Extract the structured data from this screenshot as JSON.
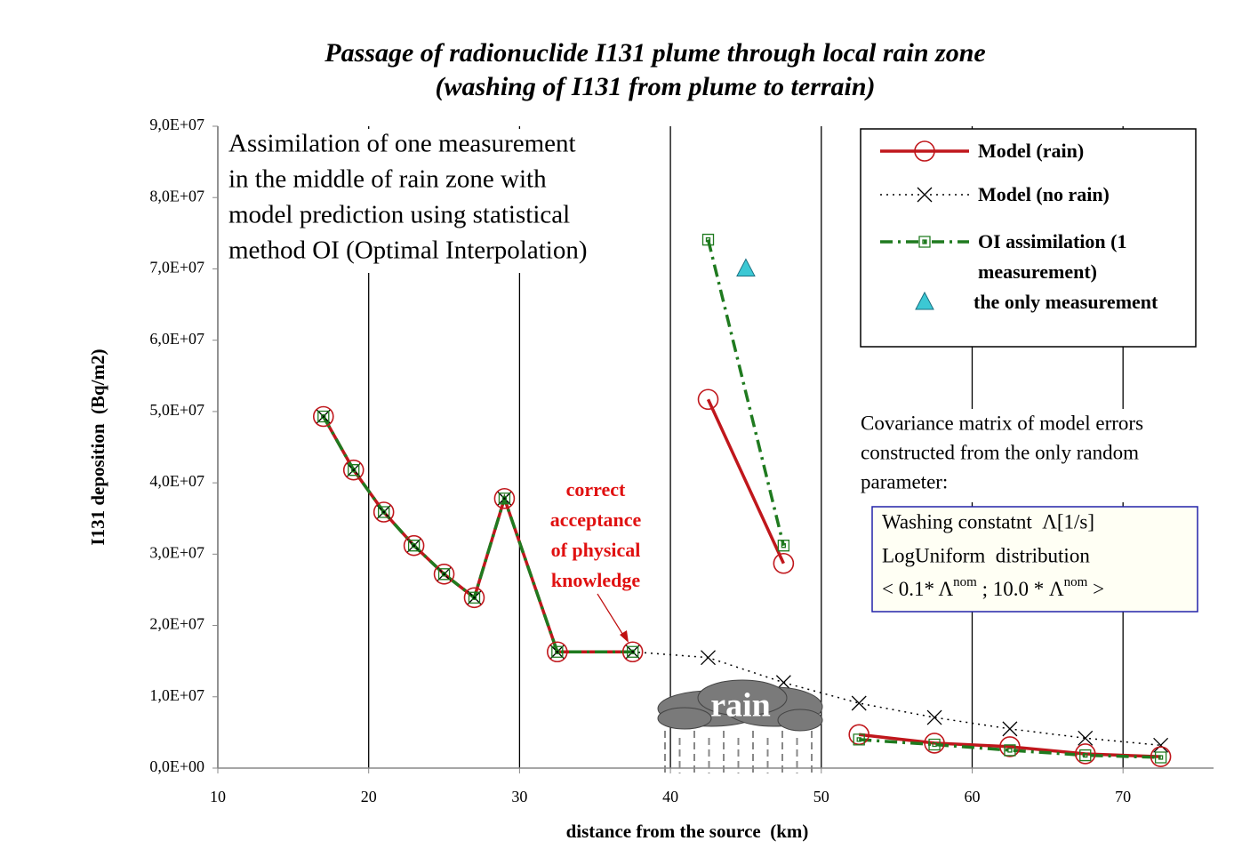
{
  "chart_data": {
    "type": "line",
    "title": [
      "Passage of radionuclide I131 plume through local rain zone",
      "(washing of I131 from plume to terrain)"
    ],
    "xlabel": "distance from the source  (km)",
    "ylabel": "I131 deposition  (Bq/m2)",
    "xlim": [
      10,
      76
    ],
    "ylim": [
      0,
      90000000
    ],
    "xticks": [
      10,
      20,
      30,
      40,
      50,
      60,
      70
    ],
    "yticks": [
      {
        "value": 0,
        "label": "0,0E+00"
      },
      {
        "value": 10000000,
        "label": "1,0E+07"
      },
      {
        "value": 20000000,
        "label": "2,0E+07"
      },
      {
        "value": 30000000,
        "label": "3,0E+07"
      },
      {
        "value": 40000000,
        "label": "4,0E+07"
      },
      {
        "value": 50000000,
        "label": "5,0E+07"
      },
      {
        "value": 60000000,
        "label": "6,0E+07"
      },
      {
        "value": 70000000,
        "label": "7,0E+07"
      },
      {
        "value": 80000000,
        "label": "8,0E+07"
      },
      {
        "value": 90000000,
        "label": "9,0E+07"
      }
    ],
    "grid": "x",
    "series": [
      {
        "name": "Model (no rain)",
        "color": "#000000",
        "dash": "dotted",
        "marker": "cross",
        "x": [
          17,
          19,
          21,
          23,
          25,
          27,
          29,
          32.5,
          37.5,
          42.5,
          47.5,
          52.5,
          57.5,
          62.5,
          67.5,
          72.5
        ],
        "values": [
          49300000,
          41800000,
          35900000,
          31200000,
          27200000,
          23900000,
          37800000,
          16300000,
          16300000,
          15500000,
          12000000,
          9100000,
          7100000,
          5500000,
          4200000,
          3200000
        ]
      },
      {
        "name": "Model (rain)",
        "color": "#c0171c",
        "dash": "solid",
        "marker": "circle",
        "x": [
          17,
          19,
          21,
          23,
          25,
          27,
          29,
          32.5,
          37.5,
          40,
          42.5,
          47.5,
          50,
          52.5,
          57.5,
          62.5,
          67.5,
          72.5
        ],
        "values": [
          49300000,
          41800000,
          35900000,
          31200000,
          27200000,
          23900000,
          37800000,
          16300000,
          16300000,
          null,
          51700000,
          28700000,
          null,
          4700000,
          3500000,
          3000000,
          2000000,
          1600000
        ]
      },
      {
        "name": "OI assimilation (1 measurement)",
        "color": "#1f7a1f",
        "dash": "dashdot",
        "marker": "square",
        "x": [
          17,
          19,
          21,
          23,
          25,
          27,
          29,
          32.5,
          37.5,
          40,
          42.5,
          47.5,
          50,
          52.5,
          57.5,
          62.5,
          67.5,
          72.5
        ],
        "values": [
          49300000,
          41800000,
          35900000,
          31200000,
          27200000,
          23900000,
          37800000,
          16300000,
          16300000,
          null,
          74100000,
          31200000,
          null,
          4000000,
          3300000,
          2500000,
          1800000,
          1500000
        ]
      },
      {
        "name": "the only measurement",
        "color": "#3cc8d4",
        "dash": "none",
        "marker": "triangle",
        "x": [
          45
        ],
        "values": [
          70000000
        ]
      }
    ],
    "annotations": {
      "textbox": [
        "Assimilation of one measurement",
        "in the middle of rain zone with",
        "model prediction using statistical",
        "method OI (Optimal Interpolation)"
      ],
      "callout": [
        "correct",
        "acceptance",
        "of physical",
        "knowledge"
      ],
      "covariance": [
        "Covariance matrix of model errors",
        "constructed from the only random",
        "parameter:"
      ],
      "distribution": [
        "Washing constatnt  Λ[1/s]",
        "LogUniform  distribution",
        [
          "< 0.1* Λ",
          "nom",
          " ; 10.0 * Λ",
          "nom",
          " >"
        ]
      ],
      "cloud": "rain"
    }
  }
}
